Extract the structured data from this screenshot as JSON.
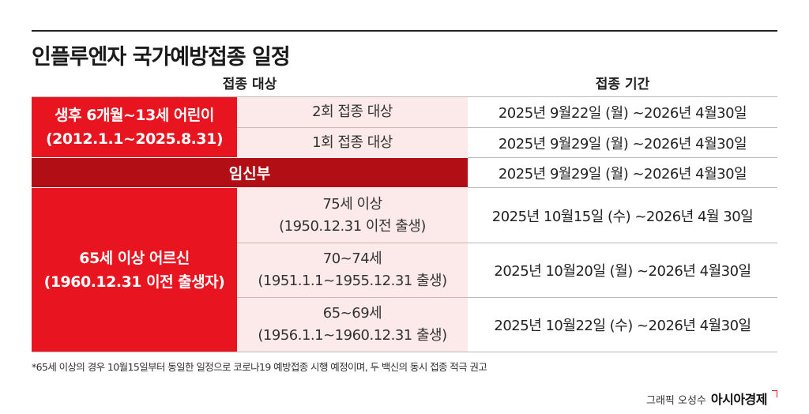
{
  "title": "인플루엔자 국가예방접종 일정",
  "headers": {
    "target": "접종 대상",
    "period": "접종 기간"
  },
  "groups": {
    "children": {
      "line1": "생후 6개월~13세 어린이",
      "line2": "(2012.1.1~2025.8.31)"
    },
    "pregnant": {
      "line1": "임신부"
    },
    "elderly": {
      "line1": "65세 이상 어르신",
      "line2": "(1960.12.31 이전 출생자)"
    }
  },
  "rows": [
    {
      "sub1": "2회 접종 대상",
      "sub2": "",
      "period": "2025년 9월22일 (월) ~2026년 4월30일"
    },
    {
      "sub1": "1회 접종 대상",
      "sub2": "",
      "period": "2025년 9월29일 (월) ~2026년 4월30일"
    },
    {
      "sub1": "",
      "sub2": "",
      "period": "2025년 9월29일 (월) ~2026년 4월30일"
    },
    {
      "sub1": "75세 이상",
      "sub2": "(1950.12.31 이전 출생)",
      "period": "2025년 10월15일 (수) ~2026년 4월 30일"
    },
    {
      "sub1": "70~74세",
      "sub2": "(1951.1.1~1955.12.31 출생)",
      "period": "2025년 10월20일 (월) ~2026년 4월30일"
    },
    {
      "sub1": "65~69세",
      "sub2": "(1956.1.1~1960.12.31 출생)",
      "period": "2025년 10월22일 (수) ~2026년 4월30일"
    }
  ],
  "note": "*65세 이상의 경우 10월15일부터 동일한 일정으로 코로나19 예방접종 시행 예정이며, 두 백신의 동시 접종 적극 권고",
  "credit": {
    "graphic": "그래픽 오성수",
    "brand": "아시아경제"
  },
  "colors": {
    "red": "#e8141f",
    "dark_red": "#b10f15",
    "pink": "#fce9e9"
  }
}
